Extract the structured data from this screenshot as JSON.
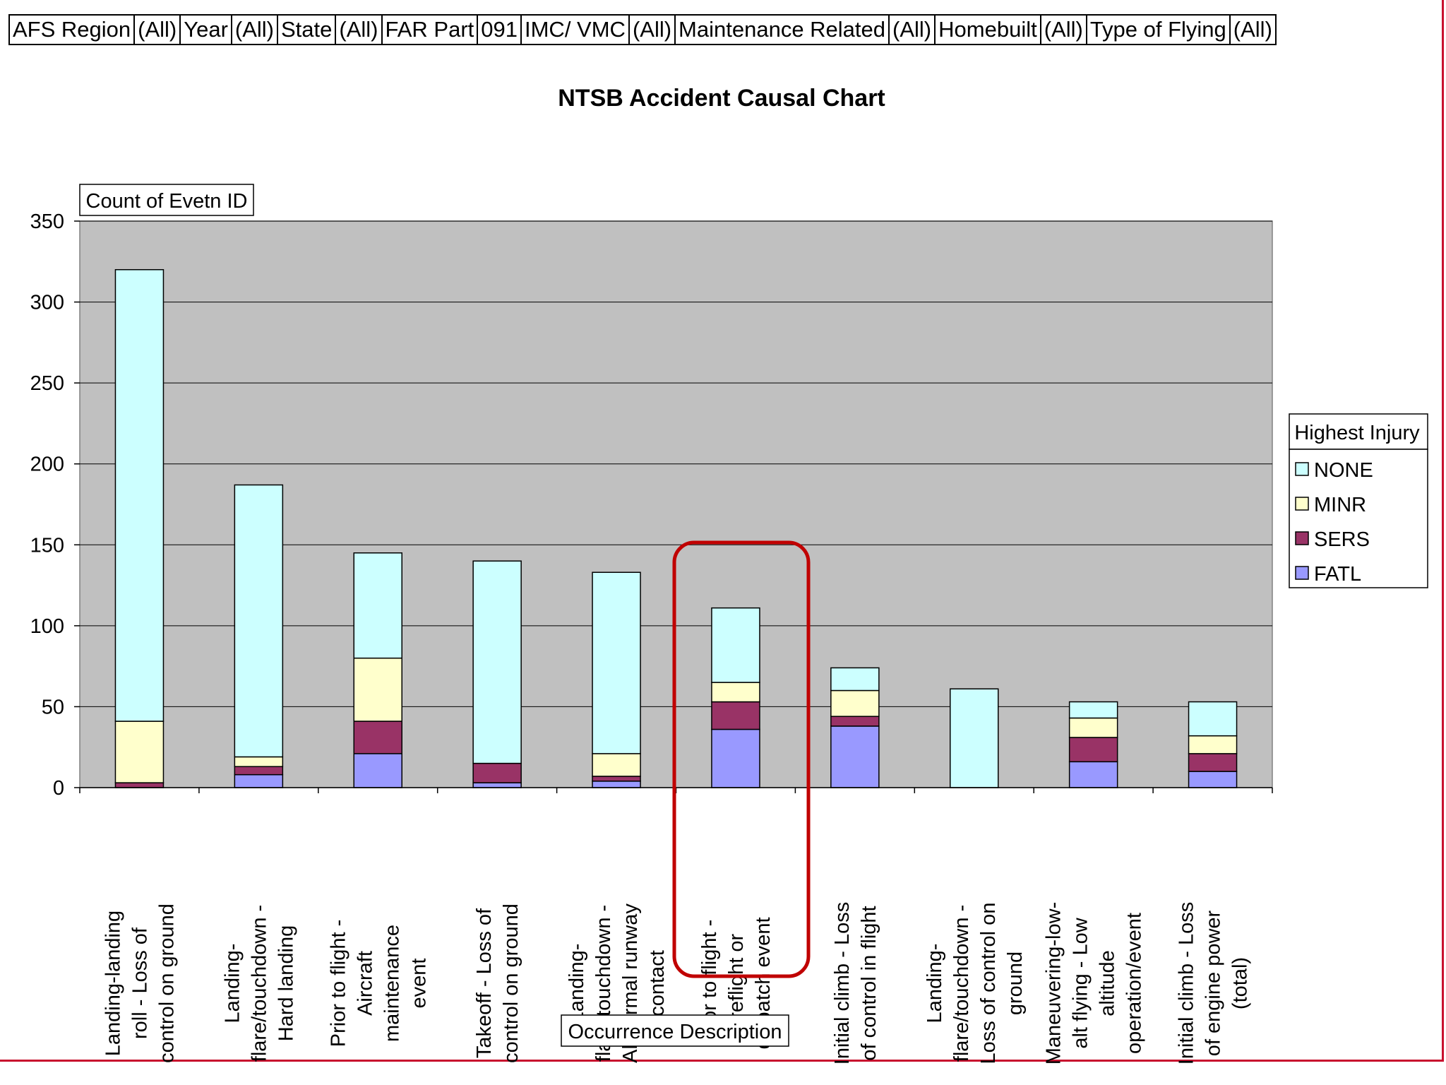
{
  "filters": [
    {
      "field": "AFS Region",
      "value": "(All)"
    },
    {
      "field": "Year",
      "value": "(All)"
    },
    {
      "field": "State",
      "value": "(All)"
    },
    {
      "field": "FAR Part",
      "value": "091"
    },
    {
      "field": "IMC/ VMC",
      "value": "(All)"
    },
    {
      "field": "Maintenance Related",
      "value": "(All)"
    },
    {
      "field": "Homebuilt",
      "value": "(All)"
    },
    {
      "field": "Type of Flying",
      "value": "(All)"
    }
  ],
  "colors": {
    "plot_bg": "#c0c0c0",
    "NONE": "#ccffff",
    "MINR": "#ffffcc",
    "SERS": "#993366",
    "FATL": "#9999ff",
    "highlight": "#c00000"
  },
  "chart_data": {
    "type": "bar",
    "stacked": true,
    "title": "NTSB Accident Causal Chart",
    "ylabel": "Count of Evetn ID",
    "xlabel": "Occurrence Description",
    "ylim": [
      0,
      350
    ],
    "yticks": [
      0,
      50,
      100,
      150,
      200,
      250,
      300,
      350
    ],
    "grid": true,
    "legend_title": "Highest Injury",
    "legend_position": "right",
    "categories": [
      "Landing-landing roll - Loss of control on ground",
      "Landing-flare/touchdown - Hard landing",
      "Prior to flight - Aircraft maintenance event",
      "Takeoff - Loss of control on ground",
      "Landing-flare/touchdown - Abnormal runway contact",
      "Prior to flight - Preflight or dispatch event",
      "Initial climb - Loss of control in flight",
      "Landing-flare/touchdown - Loss of control on ground",
      "Maneuvering-low-alt flying - Low altitude operation/event",
      "Initial climb - Loss of engine power (total)"
    ],
    "category_label_lines": [
      [
        "Landing-landing",
        "roll - Loss of",
        "control on ground"
      ],
      [
        "Landing-",
        "flare/touchdown -",
        "Hard landing"
      ],
      [
        "Prior to flight -",
        "Aircraft",
        "maintenance",
        "event"
      ],
      [
        "Takeoff - Loss of",
        "control on ground"
      ],
      [
        "Landing-",
        "flare/touchdown -",
        "Abnormal runway",
        "contact"
      ],
      [
        "Prior to flight -",
        "Preflight or",
        "dispatch event"
      ],
      [
        "Initial climb - Loss",
        "of control in flight"
      ],
      [
        "Landing-",
        "flare/touchdown -",
        "Loss of control on",
        "ground"
      ],
      [
        "Maneuvering-low-",
        "alt flying - Low",
        "altitude",
        "operation/event"
      ],
      [
        "Initial climb - Loss",
        "of engine power",
        "(total)"
      ]
    ],
    "series": [
      {
        "name": "FATL",
        "values": [
          0,
          8,
          21,
          3,
          4,
          36,
          38,
          0,
          16,
          10
        ]
      },
      {
        "name": "SERS",
        "values": [
          3,
          5,
          20,
          12,
          3,
          17,
          6,
          0,
          15,
          11
        ]
      },
      {
        "name": "MINR",
        "values": [
          38,
          6,
          39,
          0,
          14,
          12,
          16,
          0,
          12,
          11
        ]
      },
      {
        "name": "NONE",
        "values": [
          279,
          168,
          65,
          125,
          112,
          46,
          14,
          61,
          10,
          21
        ]
      }
    ],
    "legend_order": [
      "NONE",
      "MINR",
      "SERS",
      "FATL"
    ],
    "highlighted_category": "Prior to flight - Preflight or dispatch event"
  }
}
